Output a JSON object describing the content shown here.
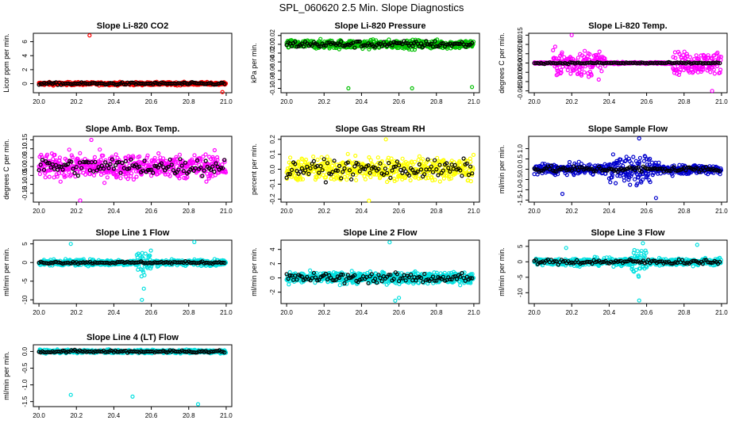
{
  "figure_title": "SPL_060620  2.5 Min. Slope Diagnostics",
  "chart_data": [
    {
      "type": "scatter",
      "title": "Slope Li-820 CO2",
      "ylabel": "Licor ppm per min.",
      "xlim": [
        19.97,
        21.03
      ],
      "ylim": [
        -1.3,
        7.2
      ],
      "xticks": [
        20.0,
        20.2,
        20.4,
        20.6,
        20.8,
        21.0
      ],
      "yticks": [
        0,
        2,
        4,
        6
      ],
      "ytick_labels": [
        "0",
        "2",
        "4",
        "6"
      ],
      "color": "#ff0000",
      "spread": 0.22,
      "outliers": [
        [
          20.27,
          6.9
        ],
        [
          20.98,
          -1.2
        ]
      ],
      "black_spread": 0.18
    },
    {
      "type": "scatter",
      "title": "Slope Li-820 Pressure",
      "ylabel": "kPa per min.",
      "xlim": [
        19.97,
        21.03
      ],
      "ylim": [
        -0.11,
        0.025
      ],
      "xticks": [
        20.0,
        20.2,
        20.4,
        20.6,
        20.8,
        21.0
      ],
      "yticks": [
        0.02,
        0.0,
        -0.02,
        -0.04,
        -0.06,
        -0.08,
        -0.1
      ],
      "ytick_labels": [
        "0.02",
        "0.00",
        "-0.02",
        "-0.04",
        "-0.06",
        "-0.08",
        "-0.10"
      ],
      "color": "#00c000",
      "spread": 0.01,
      "outliers": [
        [
          20.33,
          -0.1
        ],
        [
          20.67,
          -0.1
        ],
        [
          20.99,
          -0.097
        ]
      ],
      "black_spread": 0.008
    },
    {
      "type": "scatter",
      "title": "Slope Li-820 Temp.",
      "ylabel": "degrees C per min.",
      "xlim": [
        19.97,
        21.03
      ],
      "ylim": [
        -0.016,
        0.016
      ],
      "xticks": [
        20.0,
        20.2,
        20.4,
        20.6,
        20.8,
        21.0
      ],
      "yticks": [
        0.015,
        0.01,
        0.005,
        0.0,
        -0.005,
        -0.01,
        -0.015
      ],
      "ytick_labels": [
        "0.015",
        "0.010",
        "0.005",
        "0.000",
        "-0.005",
        "-0.010",
        "-0.015"
      ],
      "color": "#ff00ff",
      "spread": 0.0005,
      "bursts": [
        [
          20.1,
          20.38,
          0.007
        ],
        [
          20.74,
          21.0,
          0.006
        ]
      ],
      "outliers": [
        [
          20.2,
          0.015
        ],
        [
          20.95,
          -0.015
        ]
      ],
      "black_spread": 0.0004
    },
    {
      "type": "scatter",
      "title": "Slope Amb. Box Temp.",
      "ylabel": "degrees C per min.",
      "xlim": [
        19.97,
        21.03
      ],
      "ylim": [
        -0.2,
        0.17
      ],
      "xticks": [
        20.0,
        20.2,
        20.4,
        20.6,
        20.8,
        21.0
      ],
      "yticks": [
        0.15,
        0.1,
        0.05,
        0.0,
        -0.05,
        -0.1,
        -0.15
      ],
      "ytick_labels": [
        "0.15",
        "0.10",
        "0.05",
        "0.00",
        "-0.05",
        "-0.10",
        "-0.15"
      ],
      "color": "#ff00ff",
      "spread": 0.07,
      "outliers": [
        [
          20.22,
          -0.19
        ],
        [
          20.28,
          0.15
        ]
      ],
      "black_spread": 0.05
    },
    {
      "type": "scatter",
      "title": "Slope Gas Stream RH",
      "ylabel": "percent per min.",
      "xlim": [
        19.97,
        21.03
      ],
      "ylim": [
        -0.22,
        0.22
      ],
      "xticks": [
        20.0,
        20.2,
        20.4,
        20.6,
        20.8,
        21.0
      ],
      "yticks": [
        0.2,
        0.1,
        0.0,
        -0.1,
        -0.2
      ],
      "ytick_labels": [
        "0.2",
        "0.1",
        "0.0",
        "-0.1",
        "-0.2"
      ],
      "color": "#ffff00",
      "spread": 0.08,
      "outliers": [
        [
          20.53,
          0.2
        ],
        [
          20.44,
          -0.21
        ]
      ],
      "black_spread": 0.06
    },
    {
      "type": "scatter",
      "title": "Slope Sample Flow",
      "ylabel": "ml/min per min.",
      "xlim": [
        19.97,
        21.03
      ],
      "ylim": [
        -1.6,
        1.6
      ],
      "xticks": [
        20.0,
        20.2,
        20.4,
        20.6,
        20.8,
        21.0
      ],
      "yticks": [
        1.0,
        0.5,
        0.0,
        -0.5,
        -1.0,
        -1.5
      ],
      "ytick_labels": [
        "1.0",
        "0.5",
        "0.0",
        "-0.5",
        "-1.0",
        "-1.5"
      ],
      "color": "#0000cc",
      "spread": 0.25,
      "bursts": [
        [
          20.4,
          20.62,
          0.7
        ]
      ],
      "outliers": [
        [
          20.56,
          1.5
        ],
        [
          20.15,
          -1.2
        ],
        [
          20.65,
          -1.4
        ]
      ],
      "black_spread": 0.15
    },
    {
      "type": "scatter",
      "title": "Slope Line 1 Flow",
      "ylabel": "ml/min per min.",
      "xlim": [
        19.97,
        21.03
      ],
      "ylim": [
        -11,
        6
      ],
      "xticks": [
        20.0,
        20.2,
        20.4,
        20.6,
        20.8,
        21.0
      ],
      "yticks": [
        5,
        0,
        -5,
        -10
      ],
      "ytick_labels": [
        "5",
        "0",
        "-5",
        "-10"
      ],
      "color": "#00e0e0",
      "spread": 0.8,
      "bursts": [
        [
          20.52,
          20.6,
          3.5
        ]
      ],
      "outliers": [
        [
          20.17,
          5
        ],
        [
          20.55,
          -10
        ],
        [
          20.83,
          5.5
        ],
        [
          20.56,
          -7
        ]
      ],
      "black_spread": 0.3
    },
    {
      "type": "scatter",
      "title": "Slope Line 2 Flow",
      "ylabel": "ml/min per min.",
      "xlim": [
        19.97,
        21.03
      ],
      "ylim": [
        -3.6,
        5.3
      ],
      "xticks": [
        20.0,
        20.2,
        20.4,
        20.6,
        20.8,
        21.0
      ],
      "yticks": [
        4,
        2,
        0,
        -2
      ],
      "ytick_labels": [
        "4",
        "2",
        "0",
        "-2"
      ],
      "color": "#00e0e0",
      "spread": 0.8,
      "outliers": [
        [
          20.55,
          5
        ],
        [
          20.58,
          -3.2
        ],
        [
          20.6,
          -2.8
        ]
      ],
      "black_spread": 0.7
    },
    {
      "type": "scatter",
      "title": "Slope Line 3 Flow",
      "ylabel": "ml/min per min.",
      "xlim": [
        19.97,
        21.03
      ],
      "ylim": [
        -13.5,
        7
      ],
      "xticks": [
        20.0,
        20.2,
        20.4,
        20.6,
        20.8,
        21.0
      ],
      "yticks": [
        5,
        0,
        -5,
        -10
      ],
      "ytick_labels": [
        "5",
        "0",
        "-5",
        "-10"
      ],
      "color": "#00e0e0",
      "spread": 1.2,
      "bursts": [
        [
          20.52,
          20.6,
          5
        ]
      ],
      "outliers": [
        [
          20.56,
          -12.5
        ],
        [
          20.58,
          6
        ],
        [
          20.87,
          5.5
        ],
        [
          20.17,
          4.5
        ]
      ],
      "black_spread": 0.8
    },
    {
      "type": "scatter",
      "title": "Slope Line 4 (LT) Flow",
      "ylabel": "ml/min per min.",
      "xlim": [
        19.97,
        21.03
      ],
      "ylim": [
        -1.65,
        0.2
      ],
      "xticks": [
        20.0,
        20.2,
        20.4,
        20.6,
        20.8,
        21.0
      ],
      "yticks": [
        0.0,
        -0.5,
        -1.0,
        -1.5
      ],
      "ytick_labels": [
        "0.0",
        "-0.5",
        "-1.0",
        "-1.5"
      ],
      "color": "#00e0e0",
      "spread": 0.05,
      "outliers": [
        [
          20.17,
          -1.3
        ],
        [
          20.5,
          -1.35
        ],
        [
          20.85,
          -1.58
        ]
      ],
      "black_spread": 0.04
    }
  ]
}
